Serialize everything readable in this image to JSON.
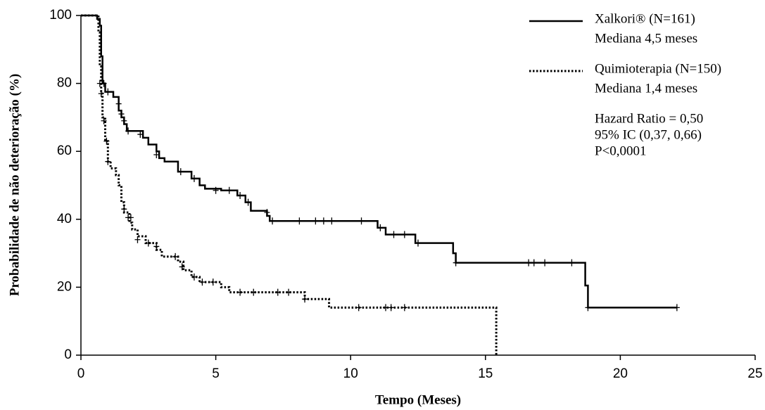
{
  "chart_data": {
    "type": "km",
    "xlabel": "Tempo (Meses)",
    "ylabel": "Probabilidade de não deterioração (%)",
    "xlim": [
      0,
      25
    ],
    "xticks": [
      0,
      5,
      10,
      15,
      20,
      25
    ],
    "ylim": [
      0,
      100
    ],
    "yticks": [
      0,
      20,
      40,
      60,
      80,
      100
    ],
    "series": [
      {
        "name": "Xalkori® (N=161)",
        "median": "Mediana 4,5 meses",
        "color": "#000000",
        "dash": "solid",
        "x": [
          0,
          0.6,
          0.7,
          0.75,
          0.8,
          0.9,
          1.2,
          1.4,
          1.5,
          1.6,
          1.7,
          2.3,
          2.5,
          2.8,
          2.9,
          3.1,
          3.6,
          4.1,
          4.4,
          4.6,
          5.2,
          5.8,
          6.1,
          6.3,
          6.9,
          7.0,
          11.0,
          11.3,
          12.4,
          13.8,
          13.9,
          18.7,
          18.8,
          22.1
        ],
        "values": [
          100,
          99,
          97,
          88,
          80,
          77.5,
          76,
          72,
          70,
          68,
          66,
          64,
          62,
          60,
          58,
          57,
          54,
          52,
          50,
          49,
          48.5,
          47,
          45,
          42.5,
          41,
          39.5,
          37.5,
          35.5,
          33,
          30,
          27.2,
          20.5,
          14,
          14
        ],
        "censored_x": [
          0.85,
          1.0,
          1.4,
          1.5,
          1.6,
          1.75,
          2.2,
          2.8,
          3.7,
          4.2,
          5.0,
          5.5,
          5.9,
          6.2,
          6.9,
          7.1,
          8.1,
          8.7,
          9.0,
          9.3,
          10.4,
          11.1,
          11.6,
          12.0,
          12.5,
          13.9,
          16.6,
          16.8,
          17.2,
          18.2,
          18.8,
          22.1
        ],
        "censored_values": [
          80,
          77.5,
          74,
          71,
          69,
          66,
          65,
          59,
          54,
          52,
          48.5,
          48.5,
          47,
          45,
          42,
          39.5,
          39.5,
          39.5,
          39.5,
          39.5,
          39.5,
          37.5,
          35.5,
          35.5,
          33,
          27.2,
          27.2,
          27.2,
          27.2,
          27.2,
          14,
          14
        ]
      },
      {
        "name": "Quimioterapia (N=150)",
        "median": "Mediana 1,4 meses",
        "color": "#000000",
        "dash": "dotted",
        "x": [
          0,
          0.65,
          0.7,
          0.75,
          0.8,
          0.9,
          1.0,
          1.1,
          1.3,
          1.4,
          1.5,
          1.6,
          1.8,
          1.9,
          2.1,
          2.4,
          2.8,
          3.0,
          3.6,
          3.8,
          4.1,
          4.4,
          5.2,
          5.5,
          8.3,
          9.2,
          15.4,
          15.4
        ],
        "values": [
          100,
          95,
          85,
          77,
          70,
          63,
          57,
          55,
          53,
          50,
          45,
          42,
          39,
          37,
          35,
          33,
          31,
          29,
          27.5,
          25,
          23,
          21.5,
          20,
          18.5,
          16.5,
          14,
          14,
          0
        ],
        "censored_x": [
          0.7,
          0.75,
          0.85,
          0.95,
          1.0,
          1.6,
          1.75,
          1.85,
          2.1,
          2.5,
          2.8,
          3.5,
          3.75,
          4.2,
          4.5,
          4.9,
          5.9,
          6.4,
          7.3,
          7.7,
          8.3,
          10.3,
          11.3,
          11.5,
          12.0
        ],
        "censored_values": [
          80,
          77,
          69,
          63,
          57,
          43,
          40.5,
          40.5,
          34,
          33,
          32,
          29,
          26,
          23,
          21.5,
          21.5,
          18.5,
          18.5,
          18.5,
          18.5,
          16.5,
          14,
          14,
          14,
          14
        ]
      }
    ],
    "annotations": [
      "Hazard Ratio = 0,50",
      "95% IC (0,37, 0,66)",
      "P<0,0001"
    ]
  }
}
